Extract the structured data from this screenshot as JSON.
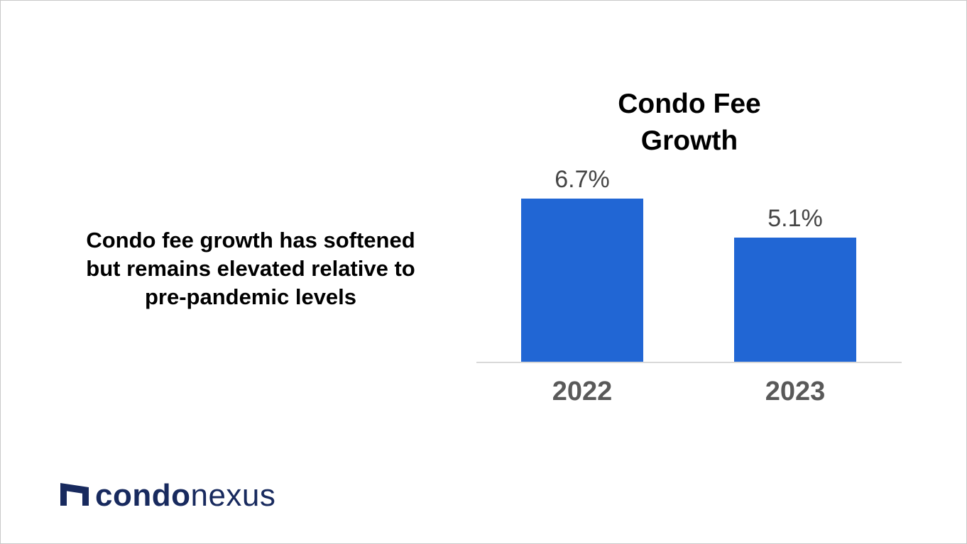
{
  "page": {
    "background": "#ffffff",
    "border_color": "#c9c9c9"
  },
  "message": {
    "text": "Condo fee growth has softened but remains elevated relative to pre-pandemic levels",
    "lines": [
      "Condo fee growth has softened",
      "but remains elevated relative to",
      "pre-pandemic levels"
    ]
  },
  "chart_data": {
    "type": "bar",
    "title": "Condo Fee Growth",
    "title_lines": [
      "Condo Fee",
      "Growth"
    ],
    "categories": [
      "2022",
      "2023"
    ],
    "values": [
      6.7,
      5.1
    ],
    "value_labels": [
      "6.7%",
      "5.1%"
    ],
    "unit": "%",
    "xlabel": "",
    "ylabel": "",
    "ylim": [
      0,
      7.5
    ],
    "grid": false,
    "legend": "none",
    "bar_color": "#2166d4",
    "value_label_color": "#454545",
    "category_label_color": "#595959",
    "axis_line_color": "#d9d9d9"
  },
  "logo": {
    "brand_primary": "condo",
    "brand_secondary": "nexus",
    "color": "#182a5e",
    "icon": "condonexus-mark"
  }
}
